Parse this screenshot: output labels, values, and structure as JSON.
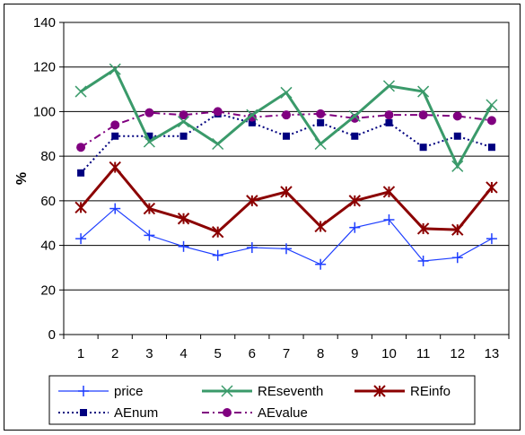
{
  "chart_data": {
    "type": "line",
    "title": "",
    "xlabel": "",
    "ylabel": "%",
    "ylim": [
      0,
      140
    ],
    "yticks": [
      0,
      20,
      40,
      60,
      80,
      100,
      120,
      140
    ],
    "categories": [
      "1",
      "2",
      "3",
      "4",
      "5",
      "6",
      "7",
      "8",
      "9",
      "10",
      "11",
      "12",
      "13"
    ],
    "grid": "horizontal",
    "legend_position": "bottom",
    "series": [
      {
        "name": "price",
        "color": "#1f3fff",
        "line": "solid",
        "marker": "plus",
        "values": [
          43,
          56.5,
          44.5,
          39.5,
          35.5,
          39,
          38.5,
          31.5,
          48,
          51.5,
          33,
          34.5,
          43
        ]
      },
      {
        "name": "REseventh",
        "color": "#3a9a6a",
        "line": "solid",
        "marker": "x",
        "values": [
          109,
          119,
          86.5,
          95.5,
          85.5,
          98.5,
          108.5,
          85.5,
          98,
          111.5,
          109,
          75.5,
          103
        ]
      },
      {
        "name": "REinfo",
        "color": "#8b0000",
        "line": "solid",
        "marker": "star",
        "values": [
          57,
          75,
          56.5,
          52,
          46,
          60,
          64,
          48.5,
          60,
          64,
          47.5,
          47,
          66
        ]
      },
      {
        "name": "AEnum",
        "color": "#00007f",
        "line": "dotted",
        "marker": "square",
        "values": [
          72.5,
          89,
          89,
          89,
          99,
          95,
          89,
          95,
          89,
          95,
          84,
          89,
          84
        ]
      },
      {
        "name": "AEvalue",
        "color": "#800080",
        "line": "dashdot",
        "marker": "circle",
        "values": [
          84,
          94,
          99.5,
          98.5,
          100,
          97.5,
          98.5,
          99,
          97,
          98.5,
          98.5,
          98,
          96
        ]
      }
    ]
  }
}
